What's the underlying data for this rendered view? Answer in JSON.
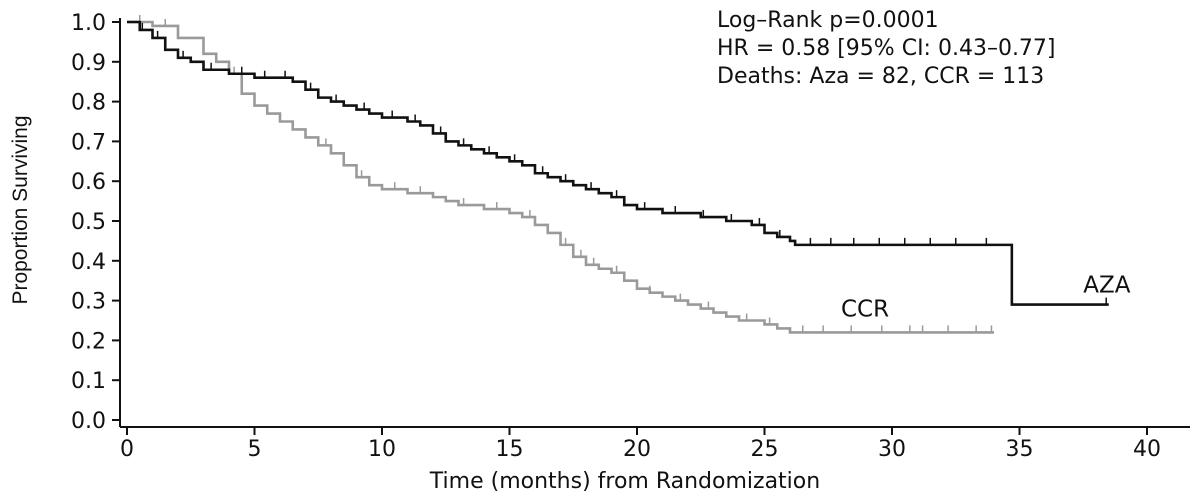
{
  "chart_data": {
    "type": "line",
    "title": "",
    "xlabel": "Time (months) from Randomization",
    "ylabel": "Proportion Surviving",
    "xlim": [
      0,
      40
    ],
    "ylim": [
      0.0,
      1.0
    ],
    "x_ticks": [
      "0",
      "5",
      "10",
      "15",
      "20",
      "25",
      "30",
      "35",
      "40"
    ],
    "y_ticks": [
      "0.0",
      "0.1",
      "0.2",
      "0.3",
      "0.4",
      "0.5",
      "0.6",
      "0.7",
      "0.8",
      "0.9",
      "1.0"
    ],
    "grid": false,
    "annotations": [
      "Log–Rank  p=0.0001",
      "HR = 0.58 [95% CI: 0.43–0.77]",
      "Deaths: Aza = 82, CCR = 113"
    ],
    "series": [
      {
        "name": "AZA",
        "color": "#111111",
        "points": [
          [
            0,
            1.0
          ],
          [
            0.3,
            1.0
          ],
          [
            0.5,
            0.98
          ],
          [
            1.0,
            0.96
          ],
          [
            1.5,
            0.93
          ],
          [
            2.0,
            0.91
          ],
          [
            2.5,
            0.9
          ],
          [
            3.0,
            0.88
          ],
          [
            4.0,
            0.87
          ],
          [
            5.0,
            0.86
          ],
          [
            6.0,
            0.86
          ],
          [
            6.5,
            0.85
          ],
          [
            7.0,
            0.83
          ],
          [
            7.5,
            0.81
          ],
          [
            8.0,
            0.8
          ],
          [
            8.5,
            0.79
          ],
          [
            9.0,
            0.78
          ],
          [
            9.5,
            0.77
          ],
          [
            10.0,
            0.76
          ],
          [
            10.5,
            0.76
          ],
          [
            11.0,
            0.75
          ],
          [
            11.5,
            0.74
          ],
          [
            12.0,
            0.72
          ],
          [
            12.5,
            0.7
          ],
          [
            13.0,
            0.69
          ],
          [
            13.5,
            0.68
          ],
          [
            14.0,
            0.67
          ],
          [
            14.5,
            0.66
          ],
          [
            15.0,
            0.65
          ],
          [
            15.5,
            0.64
          ],
          [
            16.0,
            0.62
          ],
          [
            16.5,
            0.61
          ],
          [
            17.0,
            0.6
          ],
          [
            17.5,
            0.59
          ],
          [
            18.0,
            0.58
          ],
          [
            18.5,
            0.57
          ],
          [
            19.0,
            0.56
          ],
          [
            19.5,
            0.54
          ],
          [
            20.0,
            0.53
          ],
          [
            21.0,
            0.52
          ],
          [
            22.0,
            0.52
          ],
          [
            22.5,
            0.51
          ],
          [
            23.5,
            0.5
          ],
          [
            24.5,
            0.49
          ],
          [
            25.0,
            0.47
          ],
          [
            25.5,
            0.46
          ],
          [
            26.0,
            0.45
          ],
          [
            26.2,
            0.44
          ],
          [
            30.0,
            0.44
          ],
          [
            34.7,
            0.44
          ],
          [
            34.7,
            0.29
          ],
          [
            38.5,
            0.29
          ]
        ],
        "censor_x": [
          0.6,
          1.2,
          2.2,
          3.3,
          4.5,
          5.4,
          6.2,
          7.2,
          8.2,
          9.3,
          10.4,
          11.3,
          12.3,
          13.2,
          14.2,
          15.2,
          16.3,
          17.2,
          18.2,
          19.2,
          20.3,
          21.5,
          22.6,
          23.7,
          24.8,
          25.6,
          26.8,
          27.6,
          28.5,
          29.5,
          30.5,
          31.5,
          32.5,
          33.7,
          38.4
        ]
      },
      {
        "name": "CCR",
        "color": "#9a9a9a",
        "points": [
          [
            0,
            1.0
          ],
          [
            0.8,
            1.0
          ],
          [
            1.0,
            0.99
          ],
          [
            2.0,
            0.96
          ],
          [
            3.0,
            0.92
          ],
          [
            3.5,
            0.9
          ],
          [
            4.0,
            0.87
          ],
          [
            4.5,
            0.82
          ],
          [
            5.0,
            0.79
          ],
          [
            5.5,
            0.77
          ],
          [
            6.0,
            0.75
          ],
          [
            6.5,
            0.73
          ],
          [
            7.0,
            0.71
          ],
          [
            7.5,
            0.69
          ],
          [
            8.0,
            0.67
          ],
          [
            8.5,
            0.64
          ],
          [
            9.0,
            0.61
          ],
          [
            9.5,
            0.59
          ],
          [
            10.0,
            0.58
          ],
          [
            11.0,
            0.57
          ],
          [
            12.0,
            0.56
          ],
          [
            12.5,
            0.55
          ],
          [
            13.0,
            0.54
          ],
          [
            14.0,
            0.53
          ],
          [
            15.0,
            0.52
          ],
          [
            15.5,
            0.51
          ],
          [
            16.0,
            0.49
          ],
          [
            16.5,
            0.47
          ],
          [
            17.0,
            0.44
          ],
          [
            17.5,
            0.41
          ],
          [
            18.0,
            0.39
          ],
          [
            18.5,
            0.38
          ],
          [
            19.0,
            0.37
          ],
          [
            19.5,
            0.35
          ],
          [
            20.0,
            0.33
          ],
          [
            20.5,
            0.32
          ],
          [
            21.0,
            0.31
          ],
          [
            21.5,
            0.3
          ],
          [
            22.0,
            0.29
          ],
          [
            22.5,
            0.28
          ],
          [
            23.0,
            0.27
          ],
          [
            23.5,
            0.26
          ],
          [
            24.0,
            0.25
          ],
          [
            25.0,
            0.24
          ],
          [
            25.5,
            0.23
          ],
          [
            26.0,
            0.22
          ],
          [
            34.0,
            0.22
          ]
        ],
        "censor_x": [
          0.5,
          1.5,
          4.2,
          6.5,
          7.8,
          9.2,
          10.5,
          11.5,
          13.2,
          14.5,
          15.8,
          17.2,
          17.8,
          18.3,
          19.2,
          20.5,
          21.7,
          22.8,
          24.3,
          25.2,
          26.5,
          27.3,
          28.4,
          29.6,
          30.7,
          31.2,
          32.2,
          33.3,
          33.9
        ]
      }
    ],
    "series_labels": [
      {
        "text": "AZA",
        "x": 37.5,
        "y": 0.32
      },
      {
        "text": "CCR",
        "x": 28.0,
        "y": 0.26
      }
    ]
  }
}
